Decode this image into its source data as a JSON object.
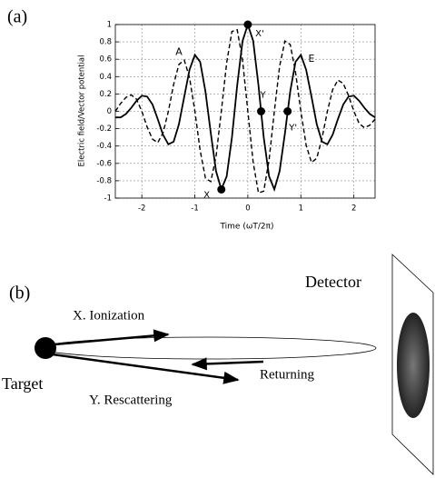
{
  "panel_a": {
    "label": "(a)"
  },
  "chart_data": {
    "type": "line",
    "xlabel": "Time (ωT/2π)",
    "ylabel": "Electric field/Vector potential",
    "x": [
      -2.5,
      -2.4,
      -2.3,
      -2.2,
      -2.1,
      -2.0,
      -1.9,
      -1.8,
      -1.7,
      -1.6,
      -1.5,
      -1.4,
      -1.3,
      -1.2,
      -1.1,
      -1.0,
      -0.9,
      -0.8,
      -0.7,
      -0.6,
      -0.5,
      -0.4,
      -0.3,
      -0.2,
      -0.1,
      0,
      0.1,
      0.2,
      0.3,
      0.4,
      0.5,
      0.6,
      0.7,
      0.8,
      0.9,
      1.0,
      1.1,
      1.2,
      1.3,
      1.4,
      1.5,
      1.6,
      1.7,
      1.8,
      1.9,
      2.0,
      2.1,
      2.2,
      2.3,
      2.4
    ],
    "series": [
      {
        "name": "E",
        "color": "#000000",
        "dash": false,
        "values": [
          -0.07,
          -0.07,
          -0.03,
          0.04,
          0.12,
          0.18,
          0.17,
          0.08,
          -0.09,
          -0.27,
          -0.38,
          -0.35,
          -0.15,
          0.17,
          0.48,
          0.65,
          0.57,
          0.23,
          -0.25,
          -0.69,
          -0.9,
          -0.75,
          -0.3,
          0.3,
          0.81,
          1,
          0.81,
          0.3,
          -0.3,
          -0.75,
          -0.9,
          -0.69,
          -0.25,
          0.23,
          0.57,
          0.65,
          0.48,
          0.17,
          -0.15,
          -0.35,
          -0.38,
          -0.27,
          -0.09,
          0.08,
          0.17,
          0.18,
          0.12,
          0.04,
          -0.03,
          -0.07
        ]
      },
      {
        "name": "A",
        "color": "#000000",
        "dash": true,
        "values": [
          0,
          0.09,
          0.16,
          0.19,
          0.14,
          0,
          -0.18,
          -0.32,
          -0.36,
          -0.25,
          0,
          0.31,
          0.54,
          0.59,
          0.39,
          0,
          -0.45,
          -0.77,
          -0.81,
          -0.52,
          0,
          0.56,
          0.92,
          0.94,
          0.59,
          0,
          -0.59,
          -0.94,
          -0.92,
          -0.56,
          0,
          0.52,
          0.81,
          0.77,
          0.45,
          0,
          -0.39,
          -0.59,
          -0.54,
          -0.31,
          0,
          0.25,
          0.36,
          0.32,
          0.18,
          0,
          -0.14,
          -0.19,
          -0.16,
          -0.09
        ]
      }
    ],
    "points": [
      {
        "label": "X",
        "x": -0.5,
        "y": -0.9
      },
      {
        "label": "X'",
        "x": 0,
        "y": 1
      },
      {
        "label": "Y",
        "x": 0.25,
        "y": 0
      },
      {
        "label": "Y'",
        "x": 0.75,
        "y": 0
      }
    ],
    "xlim": [
      -2.5,
      2.4
    ],
    "ylim": [
      -1,
      1
    ],
    "xticks": [
      -2,
      -1,
      0,
      1,
      2
    ],
    "yticks": [
      -1,
      -0.8,
      -0.6,
      -0.4,
      -0.2,
      0,
      0.2,
      0.4,
      0.6,
      0.8,
      1
    ],
    "grid": true
  },
  "panel_b": {
    "label": "(b)",
    "detector": "Detector",
    "target": "Target",
    "ionization": "X. Ionization",
    "returning": "Returning",
    "rescattering": "Y. Rescattering"
  }
}
